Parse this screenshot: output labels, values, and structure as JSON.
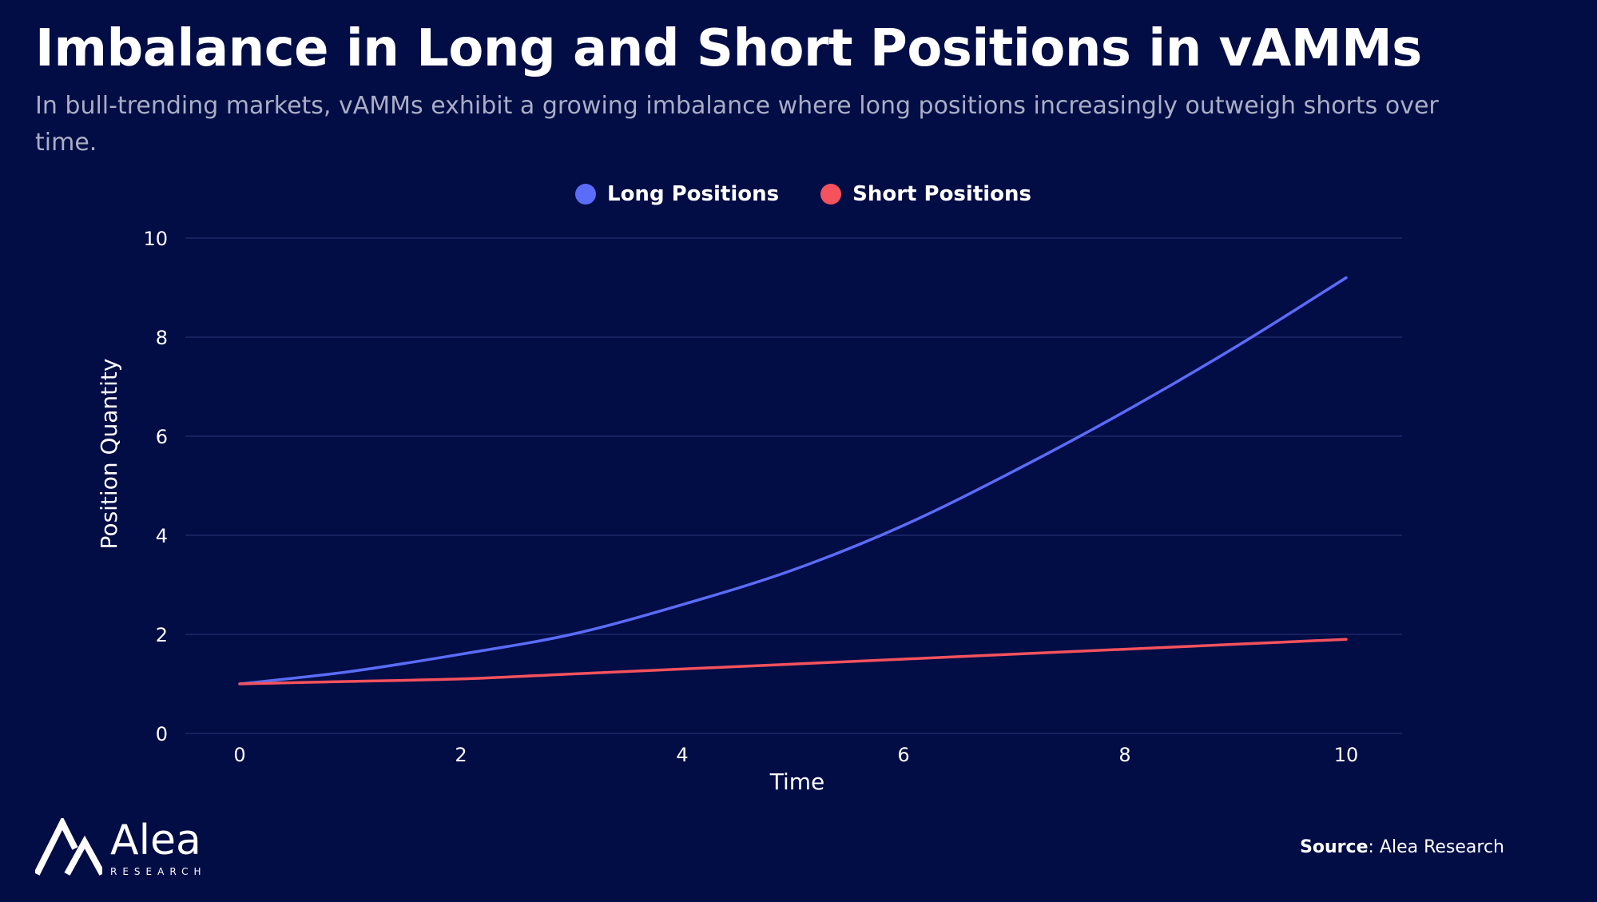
{
  "header": {
    "title": "Imbalance in Long and Short Positions in vAMMs",
    "subtitle": "In bull-trending markets, vAMMs exhibit a growing imbalance where long positions increasingly outweigh shorts over time."
  },
  "footer": {
    "source_label": "Source",
    "source_value": ": Alea Research",
    "logo_name": "Alea",
    "logo_sub": "RESEARCH"
  },
  "colors": {
    "background": "#020c45",
    "long": "#5a6cf8",
    "short": "#f4525d",
    "grid": "#1c2a66"
  },
  "chart_data": {
    "type": "line",
    "xlabel": "Time",
    "ylabel": "Position Quantity",
    "xlim": [
      0,
      10
    ],
    "ylim": [
      0,
      10
    ],
    "xticks": [
      0,
      2,
      4,
      6,
      8,
      10
    ],
    "yticks": [
      0,
      2,
      4,
      6,
      8,
      10
    ],
    "grid": "horizontal",
    "legend_position": "top-center",
    "x": [
      0,
      1,
      2,
      3,
      4,
      5,
      6,
      7,
      8,
      9,
      10
    ],
    "series": [
      {
        "name": "Long Positions",
        "color": "#5a6cf8",
        "values": [
          1.0,
          1.25,
          1.6,
          2.0,
          2.6,
          3.3,
          4.2,
          5.3,
          6.5,
          7.8,
          9.2
        ]
      },
      {
        "name": "Short Positions",
        "color": "#f4525d",
        "values": [
          1.0,
          1.05,
          1.1,
          1.2,
          1.3,
          1.4,
          1.5,
          1.6,
          1.7,
          1.8,
          1.9
        ]
      }
    ]
  }
}
